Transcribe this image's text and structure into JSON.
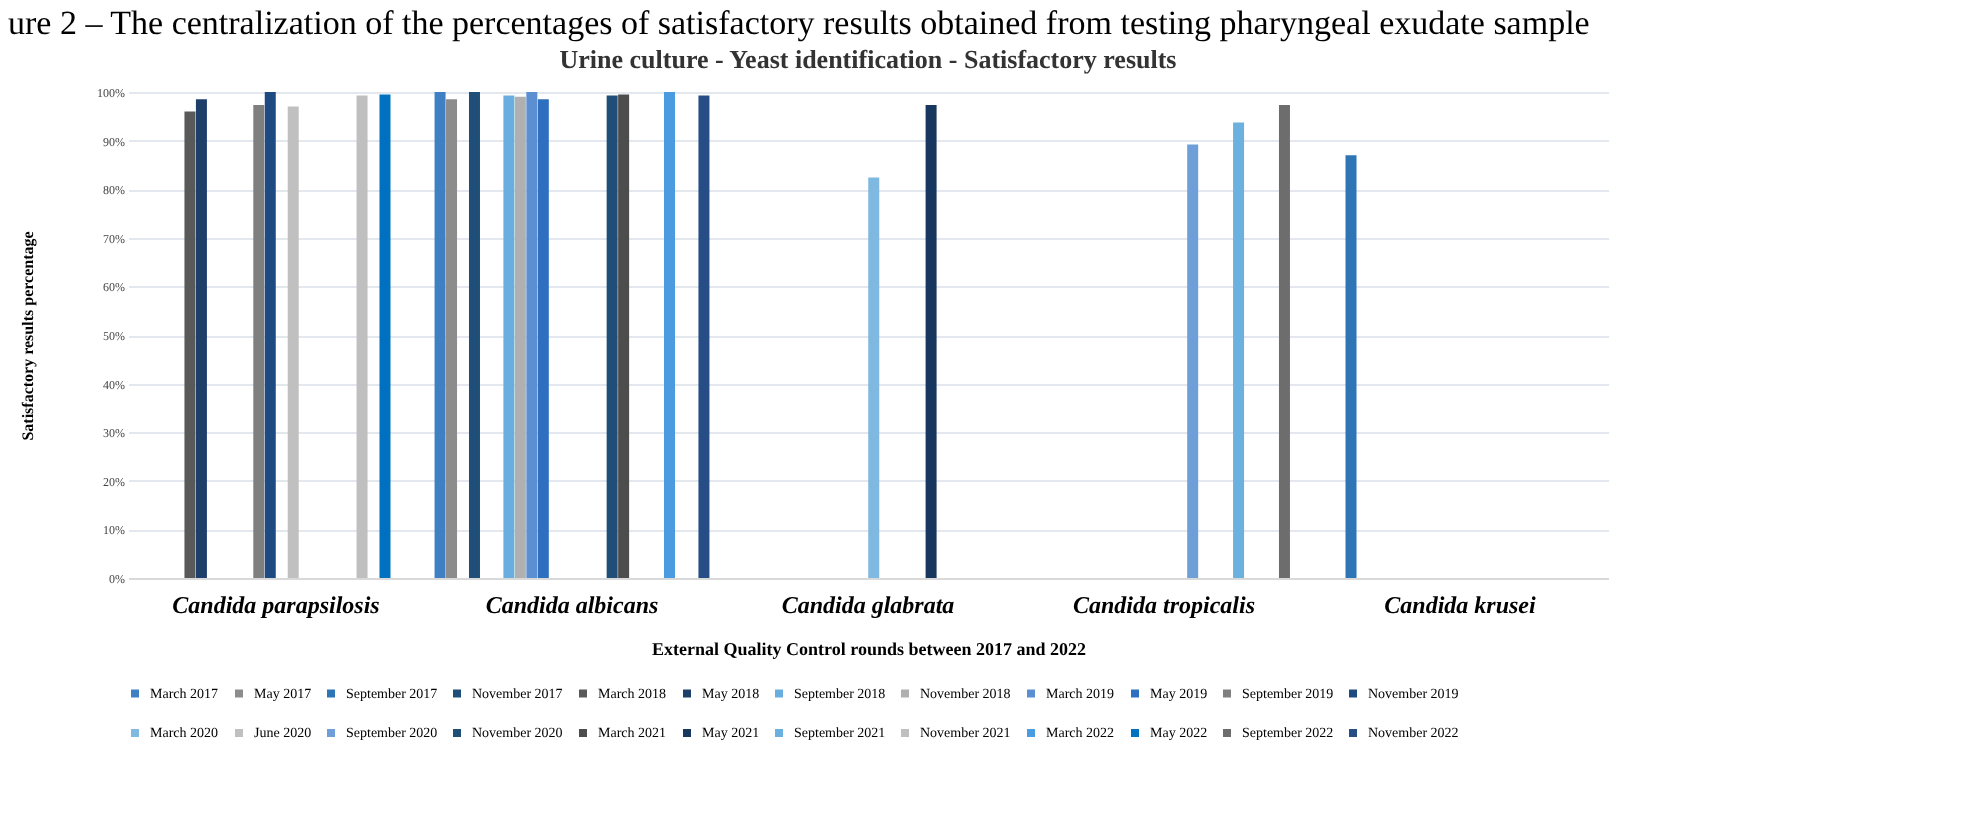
{
  "chart_data": {
    "type": "bar",
    "title": "Urine culture - Yeast identification - Satisfactory results",
    "xlabel": "External Quality Control rounds between 2017 and 2022",
    "ylabel": "Satisfactory results percentage",
    "annotations": [
      "ure 2 – The centralization of the percentages of satisfactory results obtained from testing pharyngeal exudate sample"
    ],
    "categories": [
      "Candida parapsilosis",
      "Candida albicans",
      "Candida glabrata",
      "Candida tropicalis",
      "Candida krusei"
    ],
    "ylim": [
      0,
      100
    ],
    "yticks": [
      {
        "value": 0,
        "label": "0%"
      },
      {
        "value": 10,
        "label": "10%"
      },
      {
        "value": 20,
        "label": "20%"
      },
      {
        "value": 30,
        "label": "30%"
      },
      {
        "value": 40,
        "label": "40%"
      },
      {
        "value": 50,
        "label": "50%"
      },
      {
        "value": 60,
        "label": "60%"
      },
      {
        "value": 70,
        "label": "70%"
      },
      {
        "value": 80,
        "label": "80%"
      },
      {
        "value": 90,
        "label": "90%"
      },
      {
        "value": 100,
        "label": "100%"
      }
    ],
    "grid": "y",
    "legend": "bottom",
    "series": [
      {
        "name": "March 2017",
        "color": "#3f7fc4",
        "values": [
          null,
          100,
          null,
          null,
          null
        ]
      },
      {
        "name": "May 2017",
        "color": "#8c8c8c",
        "values": [
          null,
          98.5,
          null,
          null,
          null
        ]
      },
      {
        "name": "September 2017",
        "color": "#2e75b6",
        "values": [
          null,
          null,
          null,
          null,
          87
        ]
      },
      {
        "name": "November 2017",
        "color": "#1f4e79",
        "values": [
          null,
          100,
          null,
          null,
          null
        ]
      },
      {
        "name": "March 2018",
        "color": "#595959",
        "values": [
          96,
          null,
          null,
          null,
          null
        ]
      },
      {
        "name": "May 2018",
        "color": "#1f3f6b",
        "values": [
          98.5,
          null,
          null,
          null,
          null
        ]
      },
      {
        "name": "September 2018",
        "color": "#6aaee0",
        "values": [
          null,
          99.3,
          null,
          null,
          null
        ]
      },
      {
        "name": "November 2018",
        "color": "#b0b0b0",
        "values": [
          null,
          99,
          null,
          null,
          null
        ]
      },
      {
        "name": "March 2019",
        "color": "#5b8fd1",
        "values": [
          null,
          100,
          null,
          null,
          null
        ]
      },
      {
        "name": "May 2019",
        "color": "#2f6fbf",
        "values": [
          null,
          98.5,
          null,
          null,
          null
        ]
      },
      {
        "name": "September 2019",
        "color": "#7f7f7f",
        "values": [
          97.3,
          null,
          null,
          null,
          null
        ]
      },
      {
        "name": "November 2019",
        "color": "#1e4a82",
        "values": [
          100,
          null,
          null,
          null,
          null
        ]
      },
      {
        "name": "March 2020",
        "color": "#7fb8e0",
        "values": [
          null,
          null,
          82.4,
          null,
          null
        ]
      },
      {
        "name": "June 2020",
        "color": "#c0c0c0",
        "values": [
          97,
          null,
          null,
          null,
          null
        ]
      },
      {
        "name": "September 2020",
        "color": "#6f9fd8",
        "values": [
          null,
          null,
          null,
          89.2,
          null
        ]
      },
      {
        "name": "November 2020",
        "color": "#1f4e79",
        "values": [
          null,
          99.3,
          null,
          null,
          null
        ]
      },
      {
        "name": "March 2021",
        "color": "#4d4d4d",
        "values": [
          null,
          99.5,
          null,
          null,
          null
        ]
      },
      {
        "name": "May 2021",
        "color": "#17375e",
        "values": [
          null,
          null,
          97.3,
          null,
          null
        ]
      },
      {
        "name": "September 2021",
        "color": "#6cb0e0",
        "values": [
          null,
          null,
          null,
          93.7,
          null
        ]
      },
      {
        "name": "November 2021",
        "color": "#bfbfbf",
        "values": [
          99.3,
          null,
          null,
          null,
          null
        ]
      },
      {
        "name": "March 2022",
        "color": "#4a9be0",
        "values": [
          null,
          100,
          null,
          null,
          null
        ]
      },
      {
        "name": "May 2022",
        "color": "#0070c0",
        "values": [
          99.5,
          null,
          null,
          null,
          null
        ]
      },
      {
        "name": "September 2022",
        "color": "#6d6d6d",
        "values": [
          null,
          null,
          null,
          97.3,
          null
        ]
      },
      {
        "name": "November 2022",
        "color": "#264d85",
        "values": [
          null,
          99.3,
          null,
          null,
          null
        ]
      }
    ]
  }
}
